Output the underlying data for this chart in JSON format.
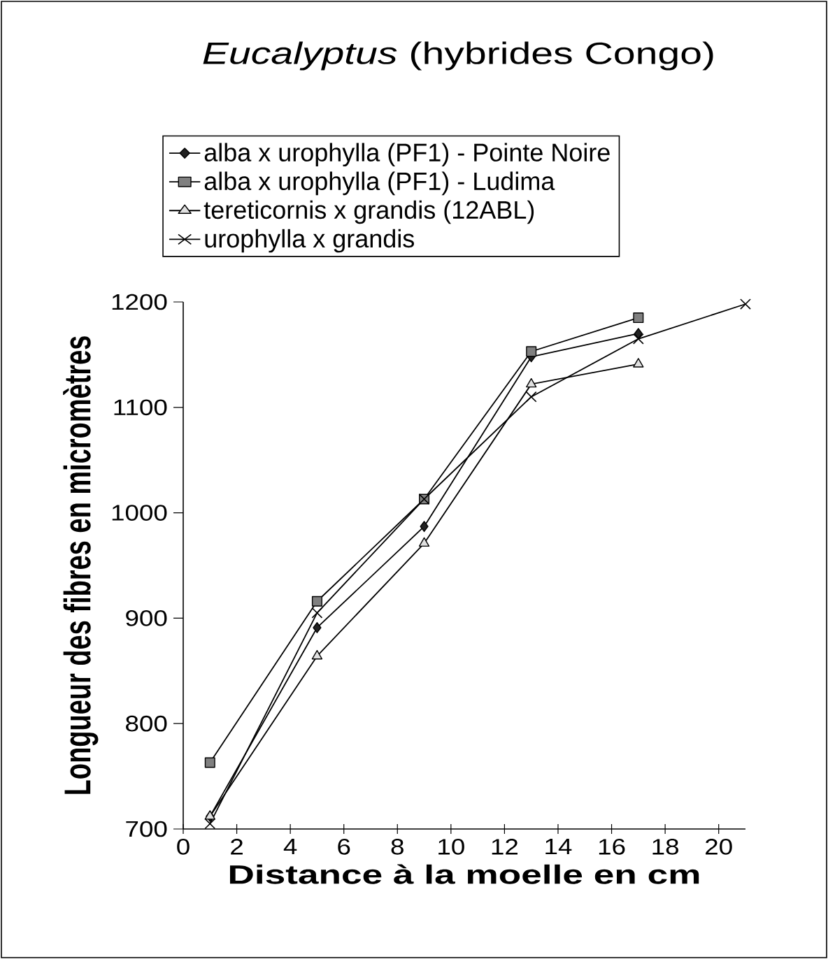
{
  "chart_data": {
    "type": "line",
    "title": "*Eucalyptus* (hybrides Congo)",
    "xlabel": "Distance à la moelle en cm",
    "ylabel": "Longueur des fibres en micromètres",
    "xlim": [
      0,
      21
    ],
    "xticks": [
      0,
      2,
      4,
      6,
      8,
      10,
      12,
      14,
      16,
      18,
      20
    ],
    "ylim": [
      700,
      1200
    ],
    "yticks": [
      700,
      800,
      900,
      1000,
      1100,
      1200
    ],
    "grid": false,
    "legend": "top",
    "series": [
      {
        "name": "alba x urophylla (PF1) - Pointe Noire",
        "color": "#222222",
        "marker": "diamond",
        "x": [
          1,
          5,
          9,
          13,
          17
        ],
        "values": [
          712,
          891,
          987,
          1148,
          1170
        ]
      },
      {
        "name": "alba x urophylla (PF1) - Ludima",
        "color": "#808080",
        "marker": "square",
        "x": [
          1,
          5,
          9,
          13,
          17
        ],
        "values": [
          763,
          916,
          1013,
          1153,
          1185
        ]
      },
      {
        "name": "tereticornis x grandis (12ABL)",
        "color": "#e0e0e0",
        "marker": "triangle",
        "x": [
          1,
          5,
          9,
          13,
          17
        ],
        "values": [
          712,
          864,
          971,
          1122,
          1141
        ]
      },
      {
        "name": "urophylla x grandis",
        "color": "#000000",
        "marker": "cross",
        "x": [
          1,
          5,
          9,
          13,
          17,
          21
        ],
        "values": [
          705,
          905,
          1013,
          1110,
          1165,
          1198
        ]
      }
    ]
  }
}
